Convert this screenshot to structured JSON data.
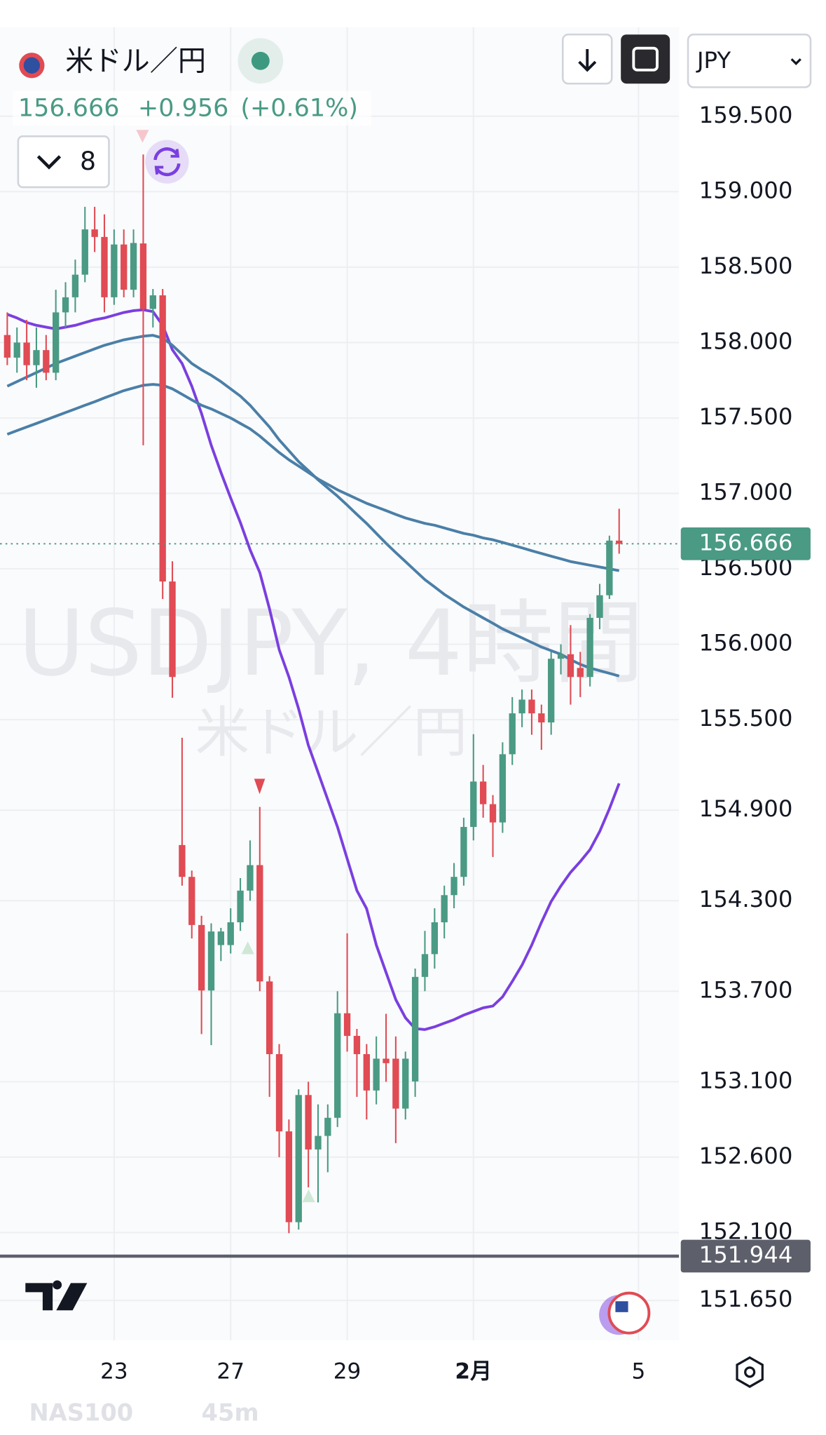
{
  "header": {
    "symbol": "米ドル／円",
    "price": "156.666",
    "change": "+0.956",
    "change_pct": "(+0.61%)",
    "indicator_count": "8",
    "currency": "JPY"
  },
  "footer": {
    "symbol": "NAS100",
    "interval": "45m"
  },
  "chart_data": {
    "type": "candlestick",
    "watermark": "USDJPY, 4時間",
    "watermark_subtitle": "米ドル／円",
    "up_color": "#4a9a84",
    "down_color": "#e04b54",
    "last_price": 156.666,
    "last_price_color": "#4a9a84",
    "low_line": 151.944,
    "low_line_color": "#5d606b",
    "ylim": [
      151.386,
      160.09
    ],
    "yticks": [
      {
        "value": 159.5,
        "label": "159.500"
      },
      {
        "value": 159.0,
        "label": "159.000"
      },
      {
        "value": 158.5,
        "label": "158.500"
      },
      {
        "value": 158.0,
        "label": "158.000"
      },
      {
        "value": 157.5,
        "label": "157.500"
      },
      {
        "value": 157.0,
        "label": "157.000"
      },
      {
        "value": 156.5,
        "label": "156.500"
      },
      {
        "value": 156.0,
        "label": "156.000"
      },
      {
        "value": 155.5,
        "label": "155.500"
      },
      {
        "value": 154.9,
        "label": "154.900"
      },
      {
        "value": 154.3,
        "label": "154.300"
      },
      {
        "value": 153.7,
        "label": "153.700"
      },
      {
        "value": 153.1,
        "label": "153.100"
      },
      {
        "value": 152.6,
        "label": "152.600"
      },
      {
        "value": 152.1,
        "label": "152.100"
      },
      {
        "value": 151.65,
        "label": "151.650"
      }
    ],
    "grid": true,
    "categories": [
      null,
      null,
      null,
      null,
      null,
      null,
      null,
      null,
      null,
      null,
      null,
      "23",
      null,
      null,
      null,
      null,
      null,
      null,
      null,
      null,
      null,
      null,
      null,
      "27",
      null,
      null,
      null,
      null,
      null,
      null,
      null,
      null,
      null,
      null,
      null,
      "29",
      null,
      null,
      null,
      null,
      null,
      null,
      null,
      null,
      null,
      null,
      null,
      null,
      "2月",
      null,
      null,
      null,
      null,
      null,
      null,
      null,
      null,
      null,
      null,
      null,
      null,
      null,
      null,
      null,
      null,
      "5"
    ],
    "open": [
      158.05,
      157.9,
      158.0,
      157.85,
      157.95,
      157.8,
      158.2,
      158.3,
      158.45,
      158.75,
      158.7,
      158.3,
      158.65,
      158.35,
      158.657,
      158.223,
      158.313,
      156.416,
      154.669,
      154.458,
      154.139,
      153.705,
      154.006,
      154.006,
      154.157,
      154.367,
      154.536,
      153.765,
      153.283,
      152.771,
      152.169,
      153.012,
      152.651,
      152.741,
      152.861,
      153.554,
      153.404,
      153.283,
      153.042,
      153.253,
      153.253,
      152.922,
      153.102,
      153.795,
      153.946,
      154.157,
      154.337,
      154.458,
      154.789,
      155.09,
      154.94,
      154.819,
      155.271,
      155.542,
      155.633,
      155.542,
      155.482,
      155.904,
      155.934,
      155.843,
      155.783,
      156.175,
      156.325,
      156.687,
      null,
      null
    ],
    "high": [
      158.2,
      158.1,
      158.15,
      158.1,
      158.05,
      158.35,
      158.4,
      158.55,
      158.9,
      158.9,
      158.85,
      158.75,
      158.75,
      158.75,
      159.247,
      158.355,
      158.355,
      156.55,
      155.38,
      154.5,
      154.2,
      154.15,
      154.12,
      154.25,
      154.45,
      154.7,
      154.922,
      153.8,
      153.35,
      152.85,
      153.05,
      153.1,
      152.95,
      152.95,
      153.7,
      154.084,
      153.45,
      153.35,
      153.4,
      153.55,
      153.4,
      153.3,
      153.85,
      154.1,
      154.25,
      154.4,
      154.55,
      154.85,
      155.404,
      155.2,
      155.0,
      155.35,
      155.65,
      155.7,
      155.7,
      155.6,
      155.95,
      156.0,
      156.127,
      155.95,
      156.2,
      156.4,
      156.72,
      156.898,
      null,
      null
    ],
    "low": [
      157.85,
      157.8,
      157.75,
      157.7,
      157.75,
      157.75,
      158.1,
      158.2,
      158.4,
      158.6,
      158.2,
      158.25,
      158.3,
      158.3,
      157.319,
      158.1,
      156.3,
      155.645,
      154.4,
      154.05,
      153.416,
      153.343,
      153.9,
      153.95,
      154.1,
      154.3,
      153.7,
      153.0,
      152.6,
      152.096,
      152.12,
      152.4,
      152.3,
      152.5,
      152.8,
      153.3,
      153.0,
      152.85,
      152.95,
      153.1,
      152.693,
      152.85,
      153.0,
      153.7,
      153.85,
      154.05,
      154.25,
      154.4,
      154.7,
      154.85,
      154.59,
      154.75,
      155.2,
      155.45,
      155.4,
      155.3,
      155.4,
      155.8,
      155.6,
      155.65,
      155.72,
      156.1,
      156.3,
      156.6,
      null,
      null
    ],
    "close": [
      157.9,
      158.0,
      157.85,
      157.95,
      157.8,
      158.2,
      158.3,
      158.45,
      158.75,
      158.7,
      158.3,
      158.65,
      158.35,
      158.66,
      158.223,
      158.313,
      156.416,
      155.783,
      154.458,
      154.139,
      153.705,
      154.096,
      154.096,
      154.157,
      154.367,
      154.536,
      153.765,
      153.283,
      152.771,
      152.169,
      153.012,
      152.651,
      152.741,
      152.861,
      153.554,
      153.404,
      153.283,
      153.042,
      153.253,
      153.223,
      152.922,
      153.253,
      153.795,
      153.946,
      154.157,
      154.337,
      154.458,
      154.789,
      155.09,
      154.94,
      154.819,
      155.271,
      155.542,
      155.633,
      155.542,
      155.482,
      155.904,
      155.934,
      155.783,
      155.783,
      156.175,
      156.325,
      156.687,
      156.666,
      null,
      null
    ],
    "series": [
      {
        "color": "#7a3fe0",
        "values": [
          158.187,
          158.163,
          158.133,
          158.114,
          158.102,
          158.09,
          158.102,
          158.114,
          158.133,
          158.151,
          158.163,
          158.181,
          158.199,
          158.211,
          158.217,
          158.205,
          158.114,
          157.952,
          157.861,
          157.711,
          157.53,
          157.319,
          157.139,
          156.97,
          156.807,
          156.627,
          156.476,
          156.235,
          155.964,
          155.783,
          155.572,
          155.331,
          155.151,
          154.97,
          154.789,
          154.578,
          154.367,
          154.247,
          154.006,
          153.825,
          153.645,
          153.524,
          153.452,
          153.446,
          153.464,
          153.488,
          153.512,
          153.542,
          153.566,
          153.59,
          153.602,
          153.663,
          153.765,
          153.873,
          154.006,
          154.157,
          154.295,
          154.398,
          154.488,
          154.56,
          154.639,
          154.759,
          154.91,
          155.078,
          null,
          null
        ]
      },
      {
        "color": "#4a7fa8",
        "values": [
          157.711,
          157.741,
          157.771,
          157.801,
          157.831,
          157.861,
          157.886,
          157.91,
          157.934,
          157.958,
          157.982,
          158.0,
          158.018,
          158.03,
          158.042,
          158.048,
          158.03,
          157.982,
          157.922,
          157.861,
          157.819,
          157.783,
          157.741,
          157.693,
          157.645,
          157.584,
          157.512,
          157.44,
          157.355,
          157.283,
          157.211,
          157.151,
          157.09,
          157.036,
          156.982,
          156.922,
          156.861,
          156.801,
          156.735,
          156.669,
          156.608,
          156.548,
          156.488,
          156.428,
          156.38,
          156.331,
          156.289,
          156.247,
          156.211,
          156.175,
          156.139,
          156.102,
          156.072,
          156.042,
          156.012,
          155.982,
          155.958,
          155.934,
          155.898,
          155.867,
          155.843,
          155.825,
          155.807,
          155.789,
          null,
          null
        ]
      },
      {
        "color": "#4a7fa8",
        "values": [
          157.392,
          157.416,
          157.44,
          157.464,
          157.488,
          157.512,
          157.536,
          157.56,
          157.584,
          157.608,
          157.633,
          157.657,
          157.681,
          157.699,
          157.717,
          157.723,
          157.717,
          157.693,
          157.657,
          157.62,
          157.584,
          157.56,
          157.53,
          157.5,
          157.464,
          157.428,
          157.38,
          157.325,
          157.271,
          157.223,
          157.181,
          157.139,
          157.096,
          157.06,
          157.024,
          156.994,
          156.964,
          156.934,
          156.91,
          156.886,
          156.861,
          156.837,
          156.819,
          156.801,
          156.789,
          156.771,
          156.753,
          156.735,
          156.723,
          156.705,
          156.693,
          156.675,
          156.657,
          156.639,
          156.62,
          156.602,
          156.584,
          156.566,
          156.548,
          156.536,
          156.524,
          156.512,
          156.5,
          156.488,
          null,
          null
        ]
      }
    ]
  }
}
